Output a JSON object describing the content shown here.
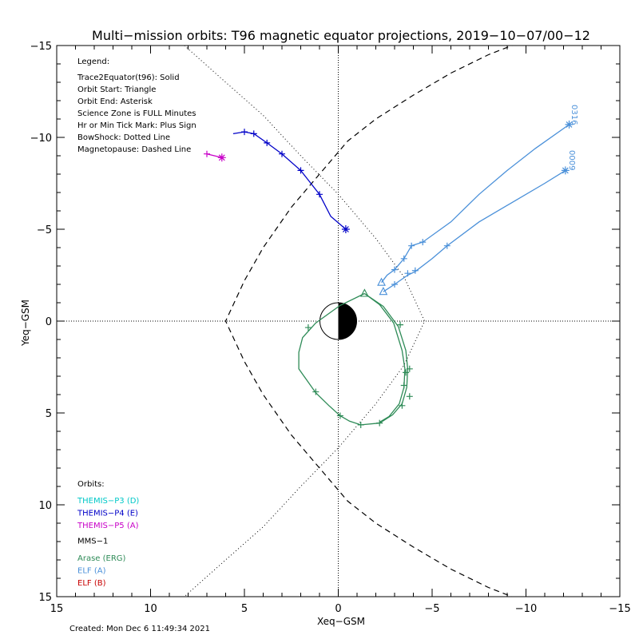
{
  "chart_data": {
    "type": "line",
    "title": "Multi−mission orbits: T96 magnetic equator projections, 2019−10−07/00−12",
    "xlabel": "Xeq−GSM",
    "ylabel": "Yeq−GSM",
    "xlim": [
      15,
      -15
    ],
    "ylim": [
      -15,
      15
    ],
    "x_ticks": [
      "15",
      "10",
      "5",
      "0",
      "−5",
      "−10",
      "−15"
    ],
    "x_tick_values": [
      15,
      10,
      5,
      0,
      -5,
      -10,
      -15
    ],
    "y_ticks": [
      "−15",
      "−10",
      "−5",
      "0",
      "5",
      "10",
      "15"
    ],
    "y_tick_values": [
      -15,
      -10,
      -5,
      0,
      5,
      10,
      15
    ],
    "grid": false,
    "legend_header": "Legend:",
    "legend_lines": [
      "Trace2Equator(t96): Solid",
      "Orbit Start: Triangle",
      "Orbit End: Asterisk",
      "Science Zone is FULL Minutes",
      "Hr or Min Tick Mark: Plus Sign",
      "BowShock: Dotted Line",
      "Magnetopause: Dashed Line"
    ],
    "orbits_header": "Orbits:",
    "orbit_entries": [
      {
        "label": "THEMIS−P3 (D)",
        "color": "#00c8c8"
      },
      {
        "label": "THEMIS−P4 (E)",
        "color": "#0000c8"
      },
      {
        "label": "THEMIS−P5 (A)",
        "color": "#c800c8"
      },
      {
        "label": "MMS−1",
        "color": "#000000"
      },
      {
        "label": "Arase (ERG)",
        "color": "#2e8b57"
      },
      {
        "label": "ELF (A)",
        "color": "#4a90d9"
      },
      {
        "label": "ELF (B)",
        "color": "#c80000"
      }
    ],
    "boundaries": {
      "bowshock": {
        "style": "dotted",
        "points": [
          [
            8.2,
            -15
          ],
          [
            6,
            -13
          ],
          [
            4,
            -11.2
          ],
          [
            2,
            -9
          ],
          [
            0,
            -6.9
          ],
          [
            -2,
            -4.5
          ],
          [
            -3.5,
            -2.4
          ],
          [
            -4.6,
            0
          ],
          [
            -3.5,
            2.4
          ],
          [
            -2,
            4.5
          ],
          [
            0,
            6.9
          ],
          [
            2,
            9
          ],
          [
            4,
            11.2
          ],
          [
            6,
            13
          ],
          [
            8.2,
            15
          ]
        ]
      },
      "magnetopause": {
        "style": "dashed",
        "points": [
          [
            -10,
            -15.3
          ],
          [
            -8,
            -14.5
          ],
          [
            -6,
            -13.5
          ],
          [
            -4,
            -12.3
          ],
          [
            -2,
            -11
          ],
          [
            -0.5,
            -9.8
          ],
          [
            1,
            -8
          ],
          [
            2.5,
            -6.2
          ],
          [
            4,
            -4
          ],
          [
            5,
            -2.2
          ],
          [
            6,
            0
          ],
          [
            5,
            2.2
          ],
          [
            4,
            4
          ],
          [
            2.5,
            6.2
          ],
          [
            1,
            8
          ],
          [
            -0.5,
            9.8
          ],
          [
            -2,
            11
          ],
          [
            -4,
            12.3
          ],
          [
            -6,
            13.5
          ],
          [
            -8,
            14.5
          ],
          [
            -10,
            15.3
          ]
        ]
      }
    },
    "series": [
      {
        "name": "THEMIS−P4 (E)",
        "color": "#0000c8",
        "points": [
          [
            5.6,
            -10.2
          ],
          [
            5,
            -10.3
          ],
          [
            4.5,
            -10.2
          ],
          [
            3.8,
            -9.7
          ],
          [
            3,
            -9.1
          ],
          [
            2,
            -8.2
          ],
          [
            1,
            -6.9
          ],
          [
            0.4,
            -5.7
          ],
          [
            -0.4,
            -5
          ]
        ],
        "ticks": [
          [
            5,
            -10.3
          ],
          [
            4.5,
            -10.2
          ],
          [
            3.8,
            -9.7
          ],
          [
            3,
            -9.1
          ],
          [
            2,
            -8.2
          ],
          [
            1,
            -6.9
          ]
        ],
        "start": null,
        "end": [
          -0.4,
          -5
        ]
      },
      {
        "name": "THEMIS−P5 (A)",
        "color": "#c800c8",
        "points": [
          [
            7,
            -9.1
          ],
          [
            6.2,
            -8.9
          ]
        ],
        "ticks": [
          [
            7,
            -9.1
          ]
        ],
        "start": null,
        "end": [
          6.2,
          -8.9
        ]
      },
      {
        "name": "Arase (ERG)",
        "color": "#2e8b57",
        "points": [
          [
            -1.4,
            -1.5
          ],
          [
            -0.1,
            -0.85
          ],
          [
            1.2,
            0.1
          ],
          [
            1.9,
            0.9
          ],
          [
            2.1,
            1.7
          ],
          [
            2.1,
            2.6
          ],
          [
            1.2,
            3.9
          ],
          [
            0.5,
            4.6
          ],
          [
            -0.1,
            5.15
          ],
          [
            -0.6,
            5.45
          ],
          [
            -1.2,
            5.65
          ],
          [
            -2.2,
            5.55
          ],
          [
            -2.9,
            5.1
          ],
          [
            -3.4,
            4.5
          ],
          [
            -3.65,
            3.6
          ],
          [
            -3.7,
            2.6
          ],
          [
            -3.6,
            1.6
          ],
          [
            -3.2,
            0.3
          ],
          [
            -2.4,
            -0.8
          ],
          [
            -1.4,
            -1.5
          ],
          [
            -2.2,
            -0.9
          ],
          [
            -2.95,
            0.1
          ],
          [
            -3.4,
            1.6
          ],
          [
            -3.55,
            2.6
          ],
          [
            -3.5,
            3.6
          ],
          [
            -3.25,
            4.5
          ],
          [
            -2.7,
            5.2
          ],
          [
            -2.2,
            5.5
          ]
        ],
        "ticks": [
          [
            1.6,
            0.35
          ],
          [
            1.2,
            3.85
          ],
          [
            -0.1,
            5.15
          ],
          [
            -1.2,
            5.65
          ],
          [
            -2.2,
            5.55
          ],
          [
            -3.4,
            4.6
          ],
          [
            -3.8,
            4.1
          ],
          [
            -3.5,
            3.5
          ],
          [
            -3.6,
            2.8
          ],
          [
            -3.3,
            0.2
          ],
          [
            -3.8,
            2.6
          ]
        ],
        "start": [
          -1.4,
          -1.5
        ],
        "end": null
      },
      {
        "name": "ELF (A)",
        "color": "#4a90d9",
        "points": [
          [
            -2.3,
            -2.1
          ],
          [
            -2.6,
            -2.5
          ],
          [
            -3,
            -2.8
          ],
          [
            -3.5,
            -3.4
          ],
          [
            -3.9,
            -4.1
          ],
          [
            -4.5,
            -4.3
          ],
          [
            -6,
            -5.4
          ],
          [
            -7.5,
            -6.9
          ],
          [
            -9,
            -8.2
          ],
          [
            -10.5,
            -9.4
          ],
          [
            -12.3,
            -10.7
          ]
        ],
        "ticks": [
          [
            -3,
            -2.8
          ],
          [
            -3.5,
            -3.4
          ],
          [
            -3.9,
            -4.1
          ],
          [
            -4.5,
            -4.3
          ]
        ],
        "start": [
          -2.3,
          -2.1
        ],
        "end": [
          -12.3,
          -10.7
        ]
      },
      {
        "name": "ELF (A)",
        "color": "#4a90d9",
        "points": [
          [
            -2.4,
            -1.6
          ],
          [
            -3,
            -2
          ],
          [
            -3.7,
            -2.5
          ],
          [
            -4.1,
            -2.7
          ],
          [
            -5,
            -3.4
          ],
          [
            -5.8,
            -4.1
          ],
          [
            -7.5,
            -5.4
          ],
          [
            -9.5,
            -6.6
          ],
          [
            -11,
            -7.5
          ],
          [
            -12.1,
            -8.2
          ]
        ],
        "ticks": [
          [
            -3,
            -2
          ],
          [
            -3.7,
            -2.6
          ],
          [
            -4.1,
            -2.75
          ],
          [
            -5.8,
            -4.1
          ]
        ],
        "start": [
          -2.4,
          -1.6
        ],
        "end": [
          -12.1,
          -8.2
        ]
      }
    ],
    "annotations": [
      "0316",
      "0009"
    ],
    "created": "Created: Mon Dec  6 11:49:34 2021"
  }
}
